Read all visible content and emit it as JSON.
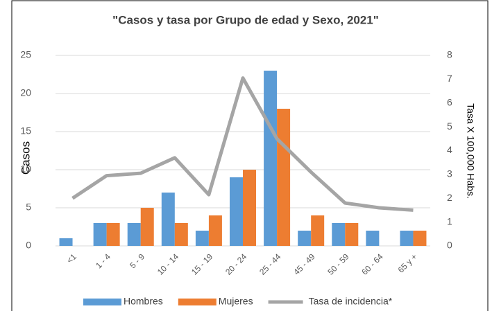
{
  "chart_data": {
    "type": "bar",
    "title": "\"Casos y tasa por Grupo de edad y Sexo, 2021\"",
    "categories": [
      "<1",
      "1 - 4",
      "5 - 9",
      "10 - 14",
      "15 - 19",
      "20 - 24",
      "25 - 44",
      "45 - 49",
      "50 - 59",
      "60 - 64",
      "65 y +"
    ],
    "series": [
      {
        "name": "Hombres",
        "color": "#5b9bd5",
        "values": [
          1,
          3,
          3,
          7,
          2,
          9,
          23,
          2,
          3,
          2,
          2
        ]
      },
      {
        "name": "Mujeres",
        "color": "#ed7d31",
        "values": [
          0,
          3,
          5,
          3,
          4,
          10,
          18,
          4,
          3,
          0,
          2
        ]
      },
      {
        "name": "Tasa de incidencia*",
        "color": "#a5a5a5",
        "axis": "y2",
        "type": "line",
        "values": [
          2.0,
          2.95,
          3.05,
          3.7,
          2.15,
          7.05,
          4.5,
          3.1,
          1.8,
          1.6,
          1.5
        ]
      }
    ],
    "ylabel": "Casos",
    "y2label": "Tasa X 100,000 Habs.",
    "ylim": [
      0,
      25
    ],
    "yticks": [
      0,
      5,
      10,
      15,
      20,
      25
    ],
    "y2lim": [
      0,
      8
    ],
    "y2ticks": [
      0,
      1,
      2,
      3,
      4,
      5,
      6,
      7,
      8
    ],
    "grid": true,
    "legend": "bottom"
  }
}
